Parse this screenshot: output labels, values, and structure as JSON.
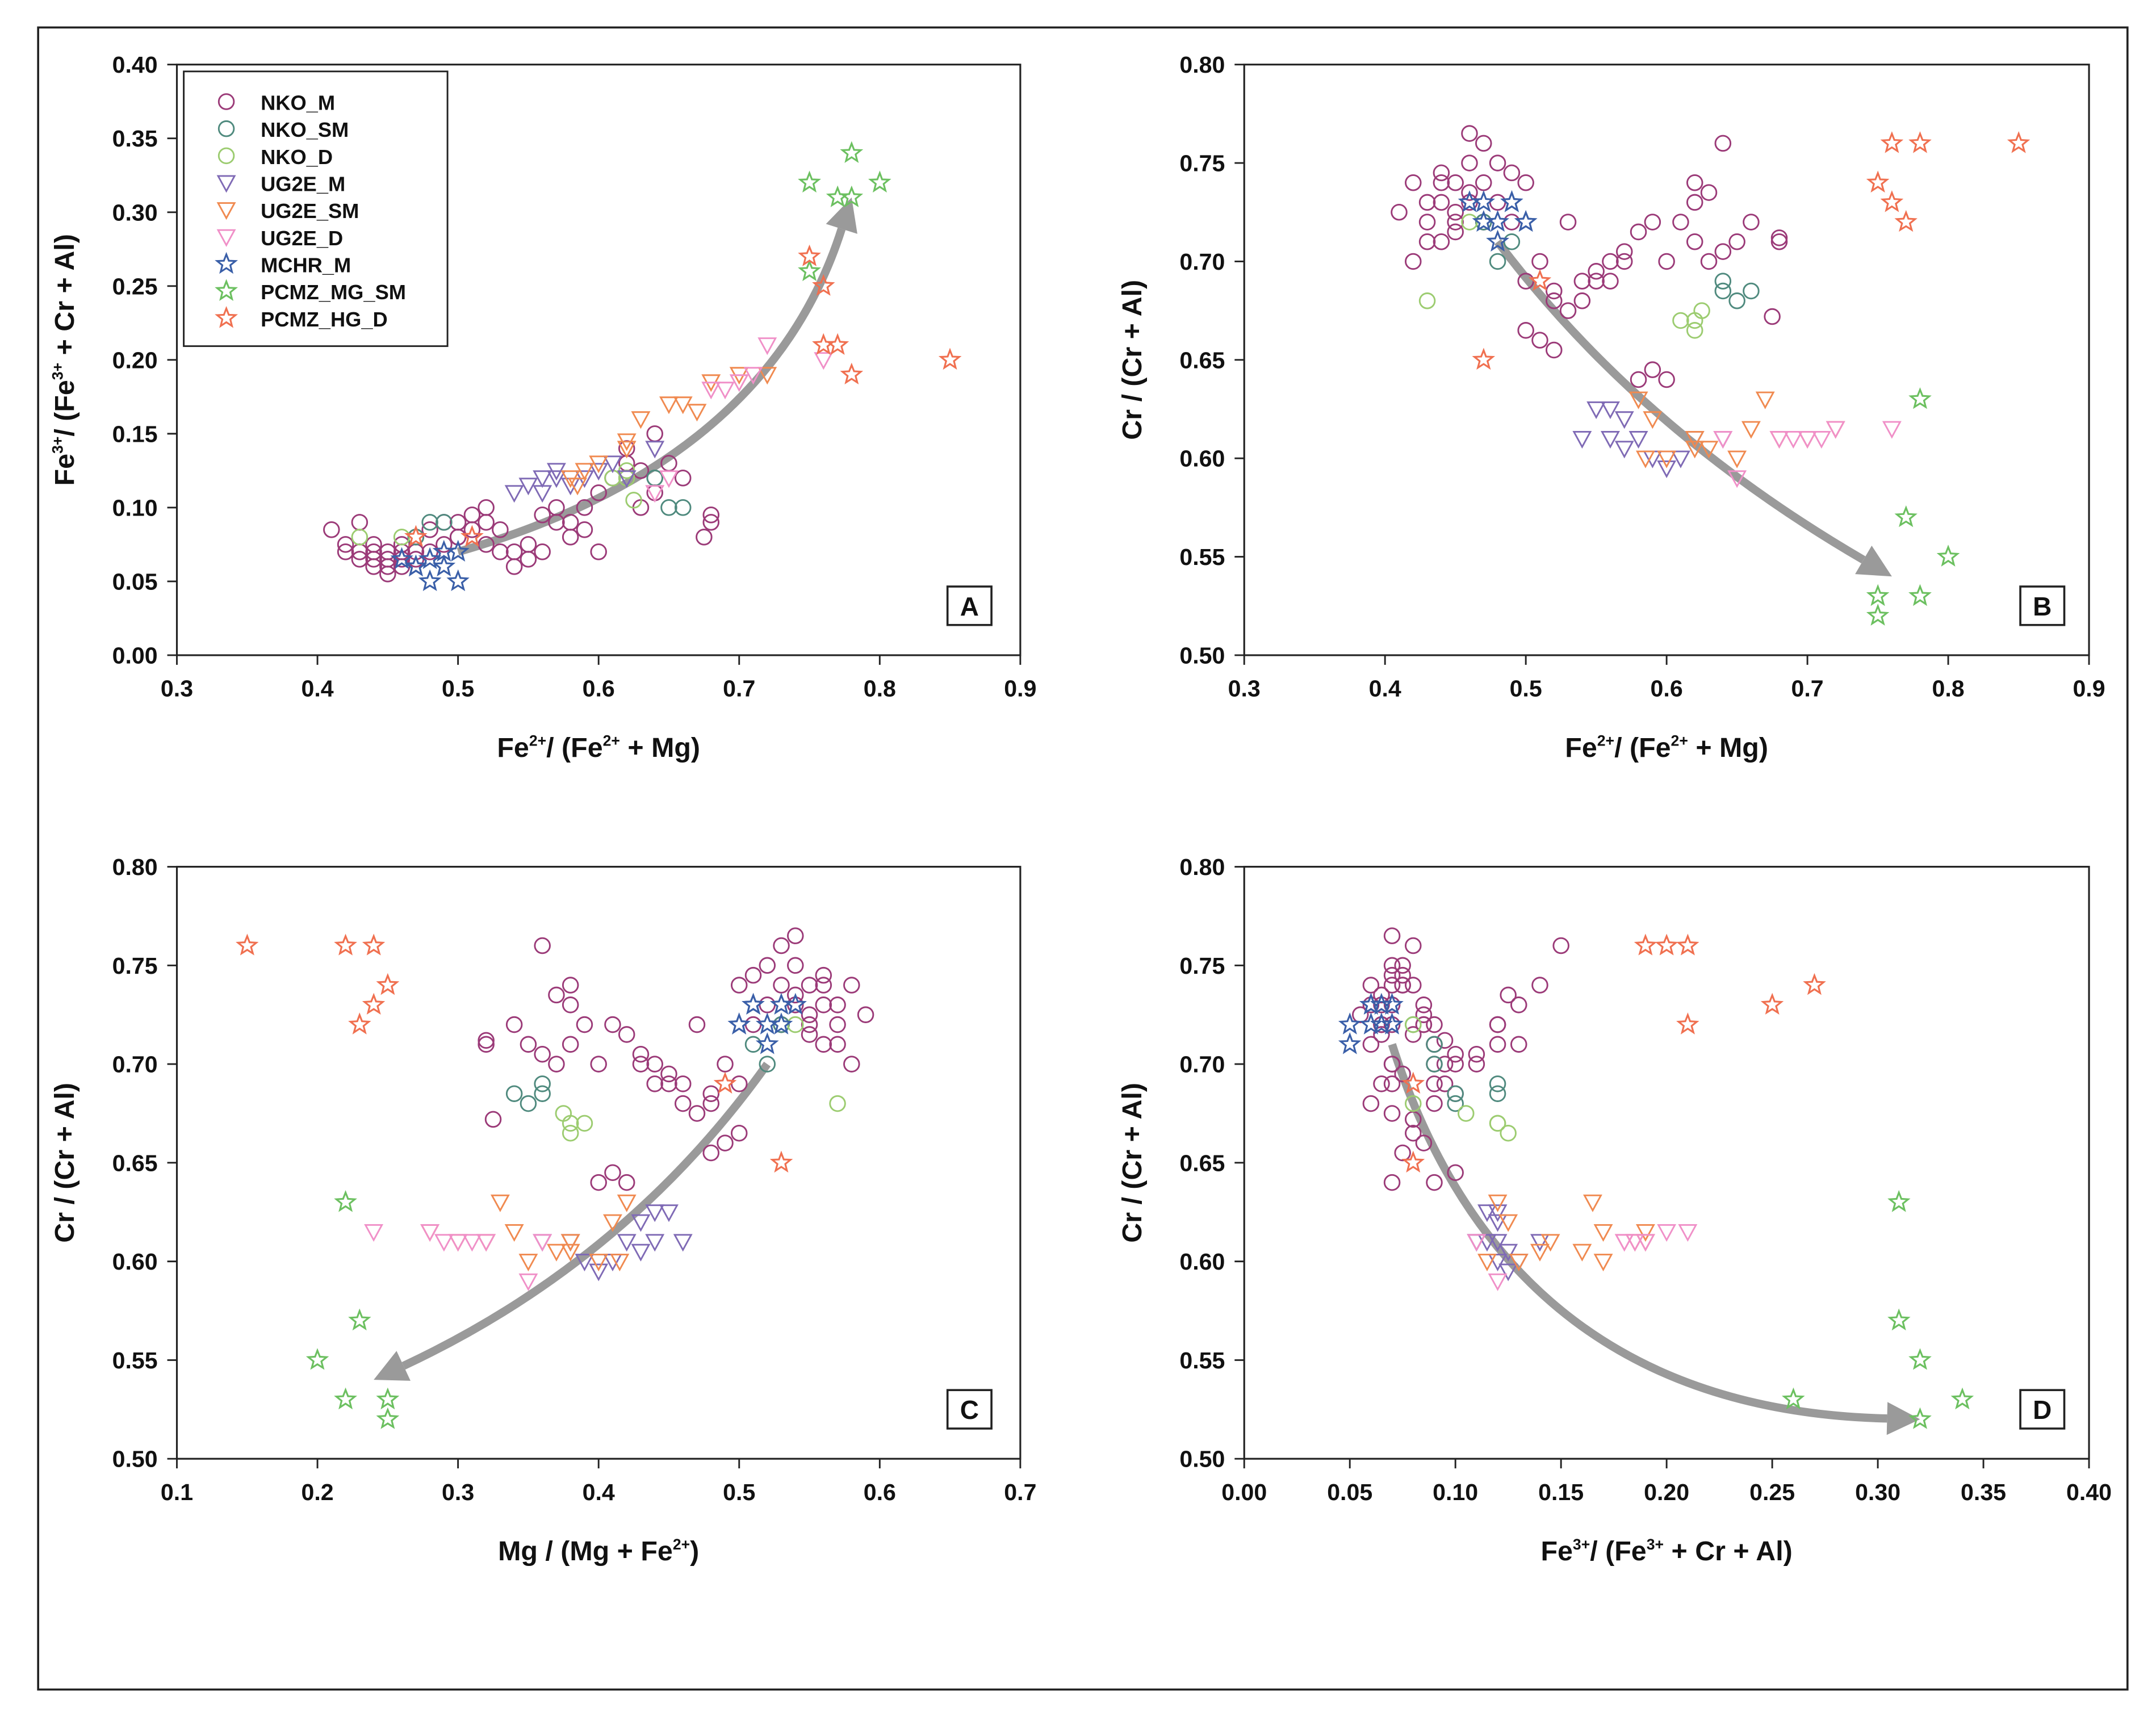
{
  "chart_data": {
    "type": "scatter",
    "point_format": [
      "Fe2+/(Fe2+ + Mg)",
      "Fe3+/(Fe3+ + Cr + Al)",
      "Cr/(Cr + Al)"
    ],
    "series": [
      {
        "name": "NKO_M",
        "marker": "circle",
        "color": "#9b3a78",
        "points": [
          [
            0.44,
            0.065,
            0.73
          ],
          [
            0.45,
            0.06,
            0.74
          ],
          [
            0.45,
            0.07,
            0.72
          ],
          [
            0.46,
            0.065,
            0.735
          ],
          [
            0.44,
            0.07,
            0.745
          ],
          [
            0.43,
            0.065,
            0.72
          ],
          [
            0.46,
            0.06,
            0.73
          ],
          [
            0.45,
            0.055,
            0.725
          ],
          [
            0.47,
            0.07,
            0.74
          ],
          [
            0.44,
            0.06,
            0.71
          ],
          [
            0.46,
            0.075,
            0.75
          ],
          [
            0.45,
            0.065,
            0.715
          ],
          [
            0.43,
            0.07,
            0.73
          ],
          [
            0.47,
            0.065,
            0.72
          ],
          [
            0.46,
            0.07,
            0.765
          ],
          [
            0.44,
            0.075,
            0.74
          ],
          [
            0.42,
            0.07,
            0.7
          ],
          [
            0.41,
            0.085,
            0.725
          ],
          [
            0.42,
            0.075,
            0.74
          ],
          [
            0.43,
            0.09,
            0.71
          ],
          [
            0.48,
            0.07,
            0.75
          ],
          [
            0.49,
            0.075,
            0.745
          ],
          [
            0.5,
            0.08,
            0.74
          ],
          [
            0.47,
            0.08,
            0.76
          ],
          [
            0.5,
            0.09,
            0.69
          ],
          [
            0.51,
            0.095,
            0.7
          ],
          [
            0.52,
            0.09,
            0.68
          ],
          [
            0.53,
            0.085,
            0.72
          ],
          [
            0.52,
            0.1,
            0.685
          ],
          [
            0.51,
            0.085,
            0.66
          ],
          [
            0.5,
            0.08,
            0.665
          ],
          [
            0.52,
            0.075,
            0.655
          ],
          [
            0.54,
            0.07,
            0.69
          ],
          [
            0.55,
            0.075,
            0.695
          ],
          [
            0.56,
            0.07,
            0.7
          ],
          [
            0.54,
            0.06,
            0.68
          ],
          [
            0.53,
            0.07,
            0.675
          ],
          [
            0.57,
            0.09,
            0.7
          ],
          [
            0.58,
            0.08,
            0.715
          ],
          [
            0.59,
            0.085,
            0.72
          ],
          [
            0.56,
            0.095,
            0.69
          ],
          [
            0.55,
            0.065,
            0.69
          ],
          [
            0.6,
            0.07,
            0.64
          ],
          [
            0.58,
            0.09,
            0.64
          ],
          [
            0.59,
            0.1,
            0.645
          ],
          [
            0.6,
            0.11,
            0.7
          ],
          [
            0.61,
            0.12,
            0.72
          ],
          [
            0.62,
            0.13,
            0.73
          ],
          [
            0.63,
            0.125,
            0.735
          ],
          [
            0.62,
            0.14,
            0.74
          ],
          [
            0.64,
            0.15,
            0.76
          ],
          [
            0.63,
            0.1,
            0.7
          ],
          [
            0.65,
            0.13,
            0.71
          ],
          [
            0.66,
            0.12,
            0.72
          ],
          [
            0.64,
            0.11,
            0.705
          ],
          [
            0.62,
            0.12,
            0.71
          ],
          [
            0.68,
            0.09,
            0.71
          ],
          [
            0.675,
            0.08,
            0.672
          ],
          [
            0.68,
            0.095,
            0.712
          ],
          [
            0.57,
            0.1,
            0.705
          ],
          [
            0.48,
            0.085,
            0.73
          ],
          [
            0.49,
            0.09,
            0.72
          ]
        ]
      },
      {
        "name": "NKO_SM",
        "marker": "circle",
        "color": "#4f8a7e",
        "points": [
          [
            0.47,
            0.08,
            0.72
          ],
          [
            0.48,
            0.09,
            0.7
          ],
          [
            0.49,
            0.09,
            0.71
          ],
          [
            0.64,
            0.12,
            0.69
          ],
          [
            0.65,
            0.1,
            0.68
          ],
          [
            0.64,
            0.12,
            0.685
          ],
          [
            0.66,
            0.1,
            0.685
          ]
        ]
      },
      {
        "name": "NKO_D",
        "marker": "circle",
        "color": "#9ccc70",
        "points": [
          [
            0.43,
            0.08,
            0.68
          ],
          [
            0.46,
            0.08,
            0.72
          ],
          [
            0.62,
            0.12,
            0.67
          ],
          [
            0.62,
            0.125,
            0.665
          ],
          [
            0.61,
            0.12,
            0.67
          ],
          [
            0.625,
            0.105,
            0.675
          ]
        ]
      },
      {
        "name": "UG2E_M",
        "marker": "triangle-down",
        "color": "#7f6ab5",
        "points": [
          [
            0.54,
            0.11,
            0.61
          ],
          [
            0.55,
            0.115,
            0.625
          ],
          [
            0.56,
            0.12,
            0.625
          ],
          [
            0.57,
            0.12,
            0.62
          ],
          [
            0.58,
            0.115,
            0.61
          ],
          [
            0.56,
            0.11,
            0.61
          ],
          [
            0.59,
            0.12,
            0.6
          ],
          [
            0.6,
            0.125,
            0.595
          ],
          [
            0.61,
            0.13,
            0.6
          ],
          [
            0.62,
            0.12,
            0.61
          ],
          [
            0.64,
            0.14,
            0.61
          ],
          [
            0.57,
            0.125,
            0.605
          ]
        ]
      },
      {
        "name": "UG2E_SM",
        "marker": "triangle-down",
        "color": "#f08a50",
        "points": [
          [
            0.58,
            0.12,
            0.63
          ],
          [
            0.59,
            0.125,
            0.62
          ],
          [
            0.6,
            0.13,
            0.6
          ],
          [
            0.62,
            0.145,
            0.61
          ],
          [
            0.63,
            0.16,
            0.605
          ],
          [
            0.65,
            0.17,
            0.6
          ],
          [
            0.66,
            0.17,
            0.615
          ],
          [
            0.67,
            0.165,
            0.63
          ],
          [
            0.68,
            0.185,
            0.61
          ],
          [
            0.7,
            0.19,
            0.61
          ],
          [
            0.72,
            0.19,
            0.615
          ],
          [
            0.62,
            0.14,
            0.605
          ],
          [
            0.585,
            0.115,
            0.6
          ]
        ]
      },
      {
        "name": "UG2E_D",
        "marker": "triangle-down",
        "color": "#f090c8",
        "points": [
          [
            0.64,
            0.11,
            0.61
          ],
          [
            0.69,
            0.18,
            0.61
          ],
          [
            0.7,
            0.185,
            0.61
          ],
          [
            0.71,
            0.19,
            0.61
          ],
          [
            0.72,
            0.21,
            0.615
          ],
          [
            0.76,
            0.2,
            0.615
          ],
          [
            0.68,
            0.18,
            0.61
          ],
          [
            0.65,
            0.12,
            0.59
          ]
        ]
      },
      {
        "name": "MCHR_M",
        "marker": "star",
        "color": "#3a5fa8",
        "points": [
          [
            0.47,
            0.06,
            0.73
          ],
          [
            0.48,
            0.065,
            0.72
          ],
          [
            0.49,
            0.07,
            0.73
          ],
          [
            0.5,
            0.07,
            0.72
          ],
          [
            0.48,
            0.05,
            0.71
          ],
          [
            0.5,
            0.05,
            0.72
          ],
          [
            0.47,
            0.06,
            0.72
          ],
          [
            0.49,
            0.06,
            0.73
          ],
          [
            0.46,
            0.065,
            0.73
          ]
        ]
      },
      {
        "name": "PCMZ_MG_SM",
        "marker": "star",
        "color": "#6cc060",
        "points": [
          [
            0.75,
            0.26,
            0.53
          ],
          [
            0.75,
            0.32,
            0.52
          ],
          [
            0.77,
            0.31,
            0.57
          ],
          [
            0.78,
            0.31,
            0.63
          ],
          [
            0.78,
            0.34,
            0.53
          ],
          [
            0.8,
            0.32,
            0.55
          ]
        ]
      },
      {
        "name": "PCMZ_HG_D",
        "marker": "star",
        "color": "#f07050",
        "points": [
          [
            0.47,
            0.08,
            0.65
          ],
          [
            0.51,
            0.08,
            0.69
          ],
          [
            0.75,
            0.27,
            0.74
          ],
          [
            0.76,
            0.25,
            0.73
          ],
          [
            0.76,
            0.21,
            0.76
          ],
          [
            0.77,
            0.21,
            0.72
          ],
          [
            0.78,
            0.19,
            0.76
          ],
          [
            0.85,
            0.2,
            0.76
          ]
        ]
      }
    ],
    "panels": [
      {
        "label": "A",
        "x_var": "fe2",
        "y_var": "fe3",
        "xlim": [
          0.3,
          0.9
        ],
        "ylim": [
          0,
          0.4
        ],
        "xticks": [
          "0.3",
          "0.4",
          "0.5",
          "0.6",
          "0.7",
          "0.8",
          "0.9"
        ],
        "yticks": [
          "0.00",
          "0.05",
          "0.10",
          "0.15",
          "0.20",
          "0.25",
          "0.30",
          "0.35",
          "0.40"
        ],
        "xlabel": [
          "Fe",
          "2+",
          "/ (Fe",
          "2+",
          " + Mg)"
        ],
        "ylabel": [
          "Fe",
          "3+",
          "/ (Fe",
          "3+",
          " + Cr + Al)"
        ],
        "legend": "top-left",
        "arrow": [
          [
            0.5,
            0.07
          ],
          [
            0.68,
            0.16
          ],
          [
            0.78,
            0.31
          ]
        ]
      },
      {
        "label": "B",
        "x_var": "fe2",
        "y_var": "cr",
        "xlim": [
          0.3,
          0.9
        ],
        "ylim": [
          0.5,
          0.8
        ],
        "xticks": [
          "0.3",
          "0.4",
          "0.5",
          "0.6",
          "0.7",
          "0.8",
          "0.9"
        ],
        "yticks": [
          "0.50",
          "0.55",
          "0.60",
          "0.65",
          "0.70",
          "0.75",
          "0.80"
        ],
        "xlabel": [
          "Fe",
          "2+",
          "/ (Fe",
          "2+",
          " + Mg)"
        ],
        "ylabel": [
          "Cr / (Cr + Al)"
        ],
        "arrow": [
          [
            0.48,
            0.71
          ],
          [
            0.6,
            0.62
          ],
          [
            0.76,
            0.54
          ]
        ]
      },
      {
        "label": "C",
        "x_var": "mg",
        "y_var": "cr",
        "xlim": [
          0.1,
          0.7
        ],
        "ylim": [
          0.5,
          0.8
        ],
        "xticks": [
          "0.1",
          "0.2",
          "0.3",
          "0.4",
          "0.5",
          "0.6",
          "0.7"
        ],
        "yticks": [
          "0.50",
          "0.55",
          "0.60",
          "0.65",
          "0.70",
          "0.75",
          "0.80"
        ],
        "xlabel": [
          "Mg / (Mg + Fe",
          "2+",
          ")"
        ],
        "ylabel": [
          "Cr / (Cr + Al)"
        ],
        "arrow": [
          [
            0.52,
            0.7
          ],
          [
            0.4,
            0.61
          ],
          [
            0.24,
            0.54
          ]
        ]
      },
      {
        "label": "D",
        "x_var": "fe3",
        "y_var": "cr",
        "xlim": [
          0,
          0.4
        ],
        "ylim": [
          0.5,
          0.8
        ],
        "xticks": [
          "0.00",
          "0.05",
          "0.10",
          "0.15",
          "0.20",
          "0.25",
          "0.30",
          "0.35",
          "0.40"
        ],
        "yticks": [
          "0.50",
          "0.55",
          "0.60",
          "0.65",
          "0.70",
          "0.75",
          "0.80"
        ],
        "xlabel": [
          "Fe",
          "3+",
          "/ (Fe",
          "3+",
          " + Cr + Al)"
        ],
        "ylabel": [
          "Cr / (Cr + Al)"
        ],
        "arrow": [
          [
            0.07,
            0.71
          ],
          [
            0.16,
            0.57
          ],
          [
            0.32,
            0.52
          ]
        ]
      }
    ],
    "arrow_color": "#9a9a9a"
  }
}
